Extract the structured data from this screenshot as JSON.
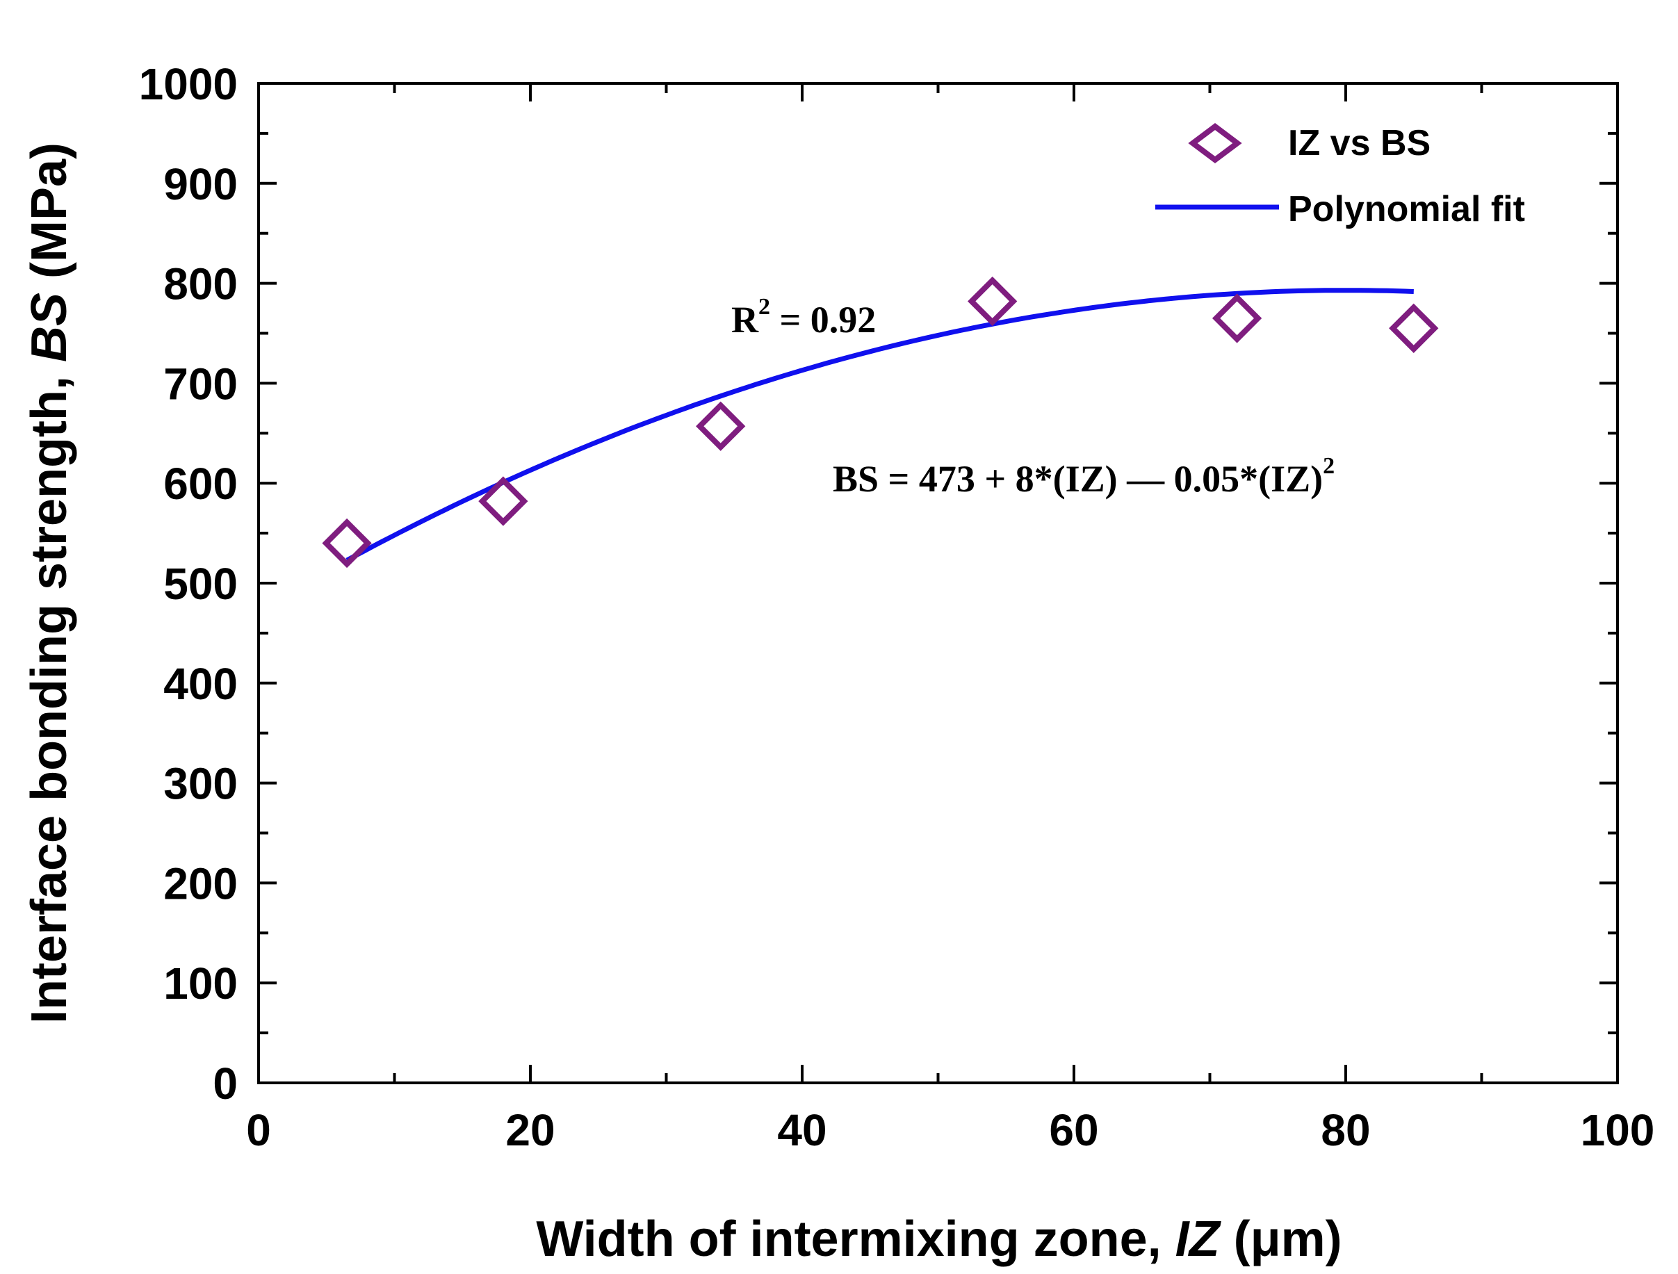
{
  "chart_data": {
    "type": "scatter",
    "title": "",
    "xlabel": {
      "prefix": "Width of intermixing zone, ",
      "italic": "IZ",
      "unit": " (μm)"
    },
    "ylabel": {
      "prefix": "Interface bonding strength, ",
      "italic": "BS",
      "unit": " (MPa)"
    },
    "xlim": [
      0,
      100
    ],
    "ylim": [
      0,
      1000
    ],
    "x_ticks": [
      "0",
      "20",
      "40",
      "60",
      "80",
      "100"
    ],
    "y_ticks": [
      "0",
      "100",
      "200",
      "300",
      "400",
      "500",
      "600",
      "700",
      "800",
      "900",
      "1000"
    ],
    "series": [
      {
        "name": "IZ vs BS",
        "kind": "scatter",
        "marker": "diamond-open",
        "color": "#7f1d7f",
        "x": [
          6.5,
          18,
          34,
          54,
          72,
          85
        ],
        "y": [
          540,
          582,
          657,
          782,
          765,
          755
        ]
      },
      {
        "name": "Polynomial fit",
        "kind": "line",
        "color": "#1010ee",
        "x_range": [
          6.5,
          85
        ],
        "coefficients": {
          "a0": 473,
          "a1": 8,
          "a2": -0.05
        }
      }
    ],
    "legend": {
      "placement": "top-right",
      "entries": [
        "IZ vs BS",
        "Polynomial fit"
      ]
    },
    "annotations": {
      "r2_base": "R",
      "r2_sup": "2",
      "r2_value": " = 0.92",
      "equation_main": "BS = 473 + 8*(IZ) — 0.05*(IZ)",
      "equation_sup": "2"
    }
  }
}
